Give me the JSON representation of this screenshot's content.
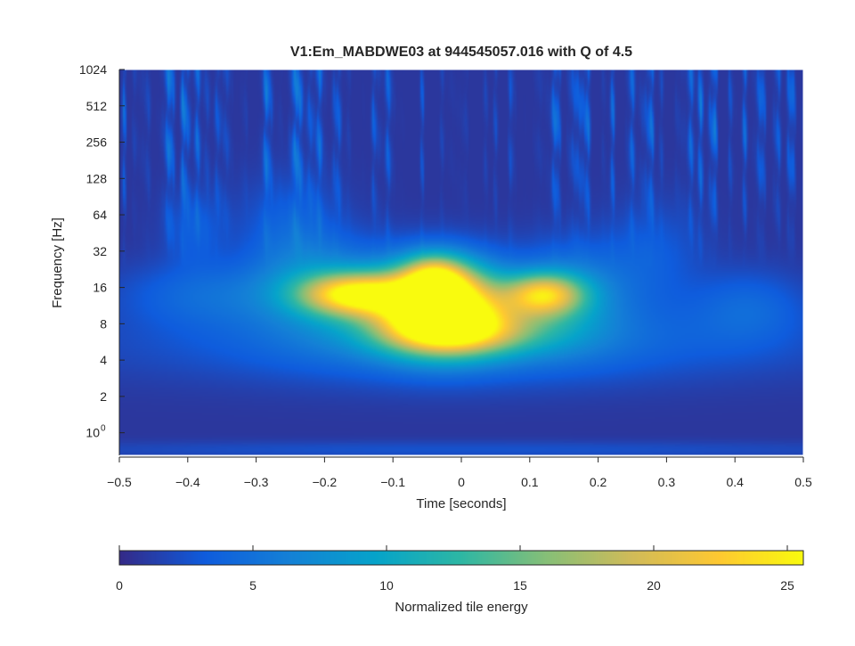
{
  "chart_data": {
    "type": "heatmap",
    "title": "V1:Em_MABDWE03 at 944545057.016 with Q of 4.5",
    "xlabel": "Time [seconds]",
    "ylabel": "Frequency [Hz]",
    "xlim": [
      -0.5,
      0.5
    ],
    "ylim_hz": [
      0.65,
      1024
    ],
    "y_scale": "log2",
    "x_ticks": [
      {
        "value": -0.5,
        "label": "−0.5"
      },
      {
        "value": -0.4,
        "label": "−0.4"
      },
      {
        "value": -0.3,
        "label": "−0.3"
      },
      {
        "value": -0.2,
        "label": "−0.2"
      },
      {
        "value": -0.1,
        "label": "−0.1"
      },
      {
        "value": 0,
        "label": "0"
      },
      {
        "value": 0.1,
        "label": "0.1"
      },
      {
        "value": 0.2,
        "label": "0.2"
      },
      {
        "value": 0.3,
        "label": "0.3"
      },
      {
        "value": 0.4,
        "label": "0.4"
      },
      {
        "value": 0.5,
        "label": "0.5"
      }
    ],
    "y_ticks": [
      {
        "value": 1024,
        "label": "1024"
      },
      {
        "value": 512,
        "label": "512"
      },
      {
        "value": 256,
        "label": "256"
      },
      {
        "value": 128,
        "label": "128"
      },
      {
        "value": 64,
        "label": "64"
      },
      {
        "value": 32,
        "label": "32"
      },
      {
        "value": 16,
        "label": "16"
      },
      {
        "value": 8,
        "label": "8"
      },
      {
        "value": 4,
        "label": "4"
      },
      {
        "value": 2,
        "label": "2"
      },
      {
        "value": 1,
        "label": "10",
        "exponent": "0"
      }
    ],
    "colorbar": {
      "label": "Normalized tile energy",
      "range": [
        0,
        25.6
      ],
      "ticks": [
        {
          "value": 0,
          "label": "0"
        },
        {
          "value": 5,
          "label": "5"
        },
        {
          "value": 10,
          "label": "10"
        },
        {
          "value": 15,
          "label": "15"
        },
        {
          "value": 20,
          "label": "20"
        },
        {
          "value": 25,
          "label": "25"
        }
      ],
      "colormap": "parula",
      "colors": [
        "#352a87",
        "#0f5cdd",
        "#1481d6",
        "#06a4ca",
        "#2eb7a4",
        "#87bf77",
        "#d1bb59",
        "#fec832",
        "#f9fb0e"
      ]
    },
    "background_value": 0.8,
    "blobs": [
      {
        "t": -0.03,
        "f": 12,
        "st": 0.06,
        "sf": 0.55,
        "a": 30
      },
      {
        "t": -0.04,
        "f": 19,
        "st": 0.03,
        "sf": 0.3,
        "a": 10
      },
      {
        "t": 0.0,
        "f": 7,
        "st": 0.085,
        "sf": 0.32,
        "a": 12
      },
      {
        "t": -0.155,
        "f": 14,
        "st": 0.055,
        "sf": 0.28,
        "a": 19
      },
      {
        "t": 0.12,
        "f": 14,
        "st": 0.04,
        "sf": 0.28,
        "a": 16
      },
      {
        "t": -0.2,
        "f": 17,
        "st": 0.07,
        "sf": 0.6,
        "a": 6
      },
      {
        "t": 0.16,
        "f": 15,
        "st": 0.06,
        "sf": 0.6,
        "a": 6
      },
      {
        "t": 0.0,
        "f": 6.5,
        "st": 0.2,
        "sf": 0.55,
        "a": 4.5
      },
      {
        "t": 0.0,
        "f": 5,
        "st": 0.45,
        "sf": 0.5,
        "a": 1.8
      },
      {
        "t": -0.37,
        "f": 14,
        "st": 0.09,
        "sf": 0.45,
        "a": 3.5
      },
      {
        "t": 0.42,
        "f": 11,
        "st": 0.06,
        "sf": 0.5,
        "a": 3.2
      },
      {
        "t": -0.39,
        "f": 50,
        "st": 0.03,
        "sf": 0.5,
        "a": 2.5
      },
      {
        "t": 0.28,
        "f": 30,
        "st": 0.05,
        "sf": 0.7,
        "a": 2.4
      },
      {
        "t": -0.25,
        "f": 50,
        "st": 0.05,
        "sf": 0.7,
        "a": 2.8
      },
      {
        "t": 0.0,
        "f": 0.72,
        "st": 0.5,
        "sf": 0.12,
        "a": 1.8
      }
    ]
  }
}
